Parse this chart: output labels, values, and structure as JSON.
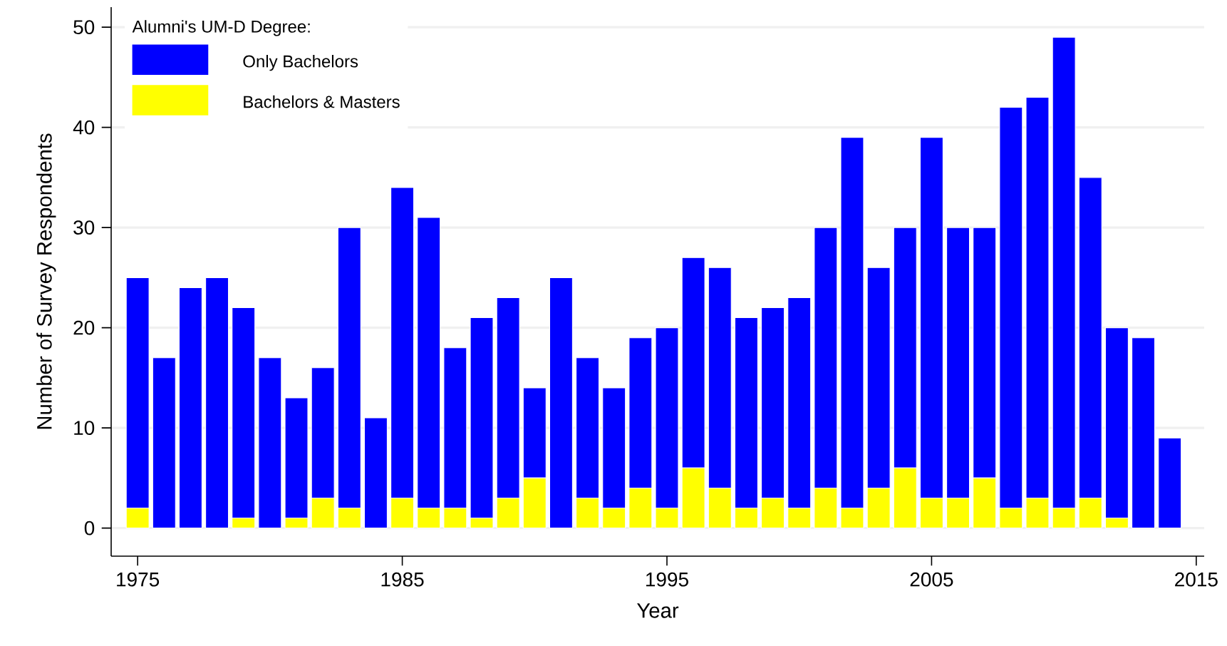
{
  "chart_data": {
    "type": "bar",
    "stacked": true,
    "xlabel": "Year",
    "ylabel": "Number of Survey Respondents",
    "legend_title": "Alumni's UM-D Degree:",
    "legend": "top left",
    "grid": "y",
    "x": [
      1975,
      1976,
      1977,
      1978,
      1979,
      1980,
      1981,
      1982,
      1983,
      1984,
      1985,
      1986,
      1987,
      1988,
      1989,
      1990,
      1991,
      1992,
      1993,
      1994,
      1995,
      1996,
      1997,
      1998,
      1999,
      2000,
      2001,
      2002,
      2003,
      2004,
      2005,
      2006,
      2007,
      2008,
      2009,
      2010,
      2011,
      2012,
      2013,
      2014
    ],
    "series": [
      {
        "name": "Bachelors & Masters",
        "color": "#ffff00",
        "values": [
          2,
          0,
          0,
          0,
          1,
          0,
          1,
          3,
          2,
          0,
          3,
          2,
          2,
          1,
          3,
          5,
          0,
          3,
          2,
          4,
          2,
          6,
          4,
          2,
          3,
          2,
          4,
          2,
          4,
          6,
          3,
          3,
          5,
          2,
          3,
          2,
          3,
          1,
          0,
          0
        ]
      },
      {
        "name": "Only Bachelors",
        "color": "#0000ff",
        "values": [
          23,
          17,
          24,
          25,
          21,
          17,
          12,
          13,
          28,
          11,
          31,
          29,
          16,
          20,
          20,
          9,
          25,
          14,
          12,
          15,
          18,
          21,
          22,
          19,
          19,
          21,
          26,
          37,
          22,
          24,
          36,
          27,
          25,
          40,
          40,
          47,
          32,
          19,
          19,
          9
        ]
      }
    ],
    "xlim": [
      1974,
      2015.3
    ],
    "ylim": [
      -2.8,
      52
    ],
    "xticks": [
      1975,
      1985,
      1995,
      2005,
      2015
    ],
    "yticks": [
      0,
      10,
      20,
      30,
      40,
      50
    ]
  }
}
